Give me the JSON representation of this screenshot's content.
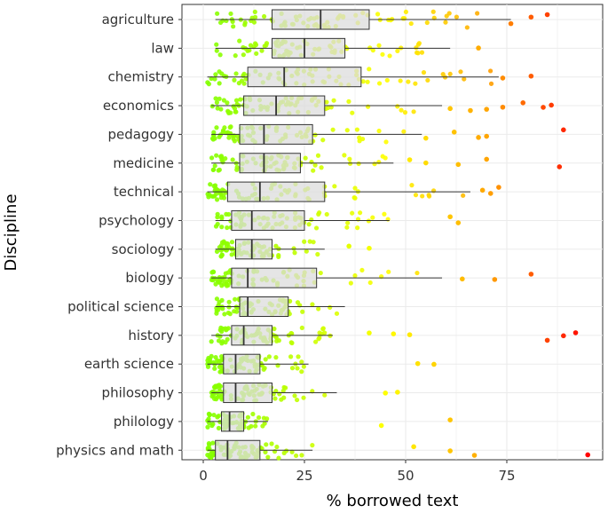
{
  "chart_data": {
    "type": "boxplot",
    "xlabel": "% borrowed text",
    "ylabel": "Discipline",
    "xlim": [
      -5,
      100
    ],
    "x_ticks": [
      0,
      25,
      50,
      75
    ],
    "grid": true,
    "legend": "none",
    "point_color_scale": [
      "#7fff00",
      "#ffff00",
      "#ffa500",
      "#ff0000"
    ],
    "box_fill": "#dcdcdc",
    "categories": [
      {
        "name": "agriculture",
        "min": 3,
        "q1": 17,
        "median": 29,
        "q3": 41,
        "max": 76,
        "outliers": [
          76,
          81,
          85
        ]
      },
      {
        "name": "law",
        "min": 3,
        "q1": 17,
        "median": 25,
        "q3": 35,
        "max": 61,
        "outliers": [
          68
        ]
      },
      {
        "name": "chemistry",
        "min": 1,
        "q1": 11,
        "median": 20,
        "q3": 39,
        "max": 73,
        "outliers": [
          74,
          81
        ]
      },
      {
        "name": "economics",
        "min": 2,
        "q1": 10,
        "median": 18,
        "q3": 30,
        "max": 59,
        "outliers": [
          61,
          66,
          70,
          74,
          79,
          84,
          86
        ]
      },
      {
        "name": "pedagogy",
        "min": 2,
        "q1": 9,
        "median": 15,
        "q3": 27,
        "max": 54,
        "outliers": [
          55,
          62,
          68,
          70,
          89
        ]
      },
      {
        "name": "medicine",
        "min": 2,
        "q1": 9,
        "median": 15,
        "q3": 24,
        "max": 47,
        "outliers": [
          51,
          55,
          63,
          70,
          88
        ]
      },
      {
        "name": "technical",
        "min": 1,
        "q1": 6,
        "median": 14,
        "q3": 30,
        "max": 66,
        "outliers": [
          69,
          71,
          73
        ]
      },
      {
        "name": "psychology",
        "min": 3,
        "q1": 7,
        "median": 12,
        "q3": 25,
        "max": 46,
        "outliers": [
          61,
          63
        ]
      },
      {
        "name": "sociology",
        "min": 3,
        "q1": 8,
        "median": 12,
        "q3": 17,
        "max": 30,
        "outliers": [
          36,
          41
        ]
      },
      {
        "name": "biology",
        "min": 2,
        "q1": 7,
        "median": 11,
        "q3": 28,
        "max": 59,
        "outliers": [
          64,
          72,
          81
        ]
      },
      {
        "name": "political science",
        "min": 3,
        "q1": 9,
        "median": 11,
        "q3": 21,
        "max": 35,
        "outliers": []
      },
      {
        "name": "history",
        "min": 2,
        "q1": 7,
        "median": 10,
        "q3": 17,
        "max": 32,
        "outliers": [
          41,
          47,
          51,
          85,
          89,
          92
        ]
      },
      {
        "name": "earth science",
        "min": 1,
        "q1": 5,
        "median": 8,
        "q3": 14,
        "max": 26,
        "outliers": [
          53,
          57
        ]
      },
      {
        "name": "philosophy",
        "min": 2,
        "q1": 5,
        "median": 8,
        "q3": 17,
        "max": 33,
        "outliers": [
          45,
          48
        ]
      },
      {
        "name": "philology",
        "min": 1,
        "q1": 4.5,
        "median": 6.5,
        "q3": 10,
        "max": 16,
        "outliers": [
          44,
          61
        ]
      },
      {
        "name": "physics and math",
        "min": 1,
        "q1": 3,
        "median": 6,
        "q3": 14,
        "max": 27,
        "outliers": [
          52,
          61,
          67,
          95
        ]
      }
    ]
  }
}
